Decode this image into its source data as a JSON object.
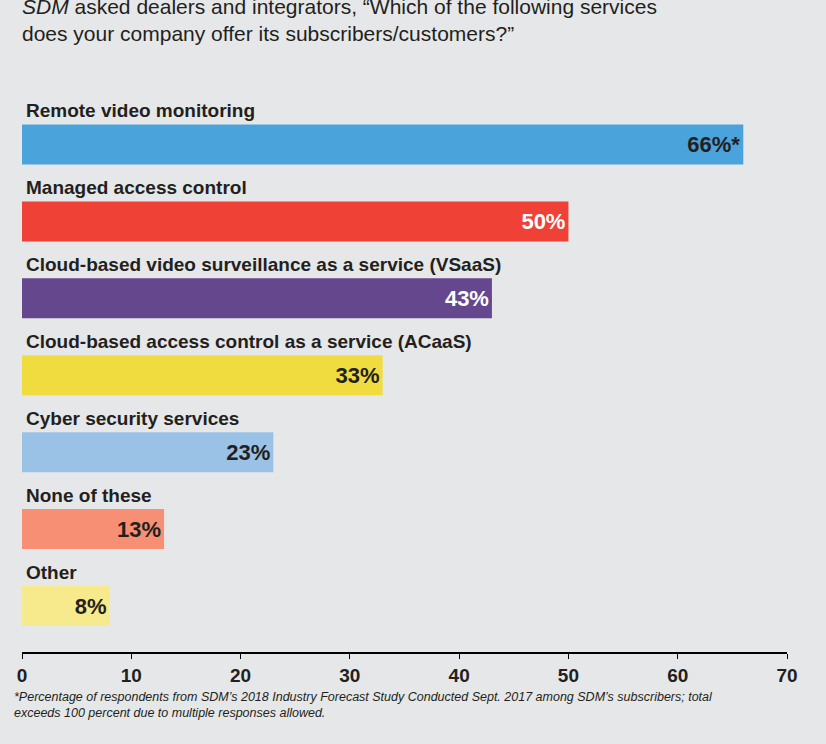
{
  "chart_data": {
    "type": "bar",
    "orientation": "horizontal",
    "title": "SDM asked dealers and integrators, “Which of the following services does your company offer its subscribers/customers?”",
    "categories": [
      "Remote video monitoring",
      "Managed access control",
      "Cloud-based video surveillance as a service (VSaaS)",
      "Cloud-based access control as a service (ACaaS)",
      "Cyber security services",
      "None of these",
      "Other"
    ],
    "values": [
      66,
      50,
      43,
      33,
      23,
      13,
      8
    ],
    "value_labels": [
      "66%*",
      "50%",
      "43%",
      "33%",
      "23%",
      "13%",
      "8%"
    ],
    "colors": [
      "#4aa3db",
      "#ef4136",
      "#65478e",
      "#f0dc3e",
      "#9ac1e6",
      "#f68f73",
      "#f6ea8d"
    ],
    "xlim": [
      0,
      70
    ],
    "xticks": [
      0,
      10,
      20,
      30,
      40,
      50,
      60,
      70
    ],
    "grid": false,
    "data_labels": true,
    "tick_labels": "x",
    "annotations": [
      "*Percentage of respondents from SDM’s 2018 Industry Forecast Study Conducted Sept. 2017 among SDM’s subscribers; total exceeds 100 percent due to multiple responses allowed."
    ]
  }
}
